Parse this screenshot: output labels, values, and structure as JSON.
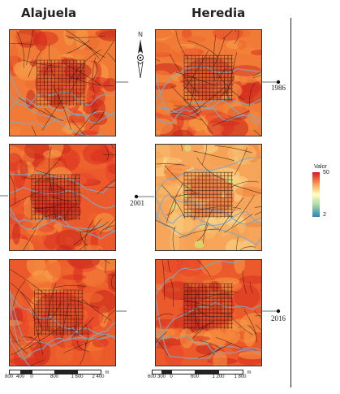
{
  "titles": {
    "left": "Alajuela",
    "right": "Heredia"
  },
  "years": [
    "1986",
    "2001",
    "2016"
  ],
  "legend": {
    "title": "Valor",
    "max": "50",
    "min": "2",
    "colors": [
      "#d7191c",
      "#fdae61",
      "#ffffbf",
      "#abdda4",
      "#2b83ba"
    ]
  },
  "scale_left": {
    "labels": [
      "800",
      "400",
      "0",
      "800",
      "1 600",
      "2 400"
    ],
    "unit": "m"
  },
  "scale_right": {
    "labels": [
      "600",
      "300",
      "0",
      "600",
      "1 200",
      "1 800"
    ],
    "unit": "m"
  },
  "north_arrow": {
    "label": "N",
    "icon": "north-arrow-icon"
  }
}
